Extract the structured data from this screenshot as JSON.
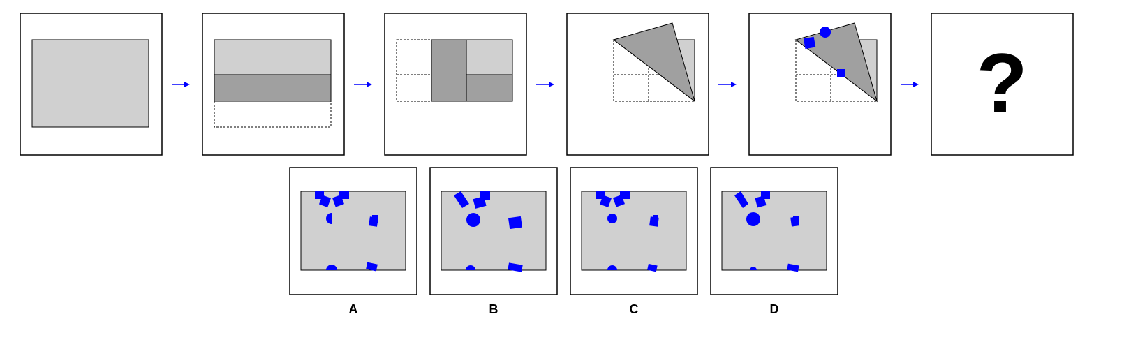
{
  "colors": {
    "paper": "#d0d0d0",
    "folded": "#a0a0a0",
    "hole": "#0000ff",
    "arrow": "#0000ff",
    "frame": "#000000",
    "background": "#ffffff"
  },
  "sequence": {
    "steps": [
      "unfolded-sheet",
      "fold-bottom-up",
      "fold-left-over",
      "fold-diagonal",
      "punch-holes",
      "question"
    ],
    "arrow_icon": "right-arrow-icon",
    "question_text": "?"
  },
  "options": [
    {
      "label": "A"
    },
    {
      "label": "B"
    },
    {
      "label": "C"
    },
    {
      "label": "D"
    }
  ]
}
